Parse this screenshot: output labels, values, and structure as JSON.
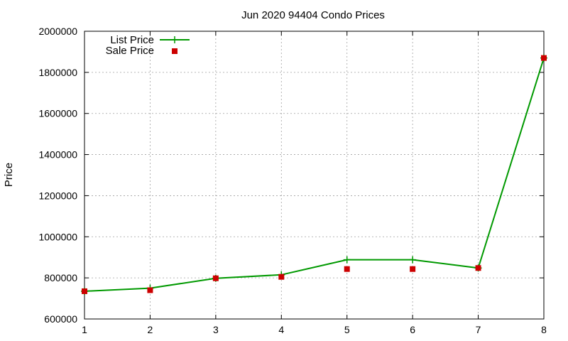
{
  "chart_data": {
    "type": "line",
    "title": "Jun 2020 94404 Condo Prices",
    "xlabel": "",
    "ylabel": "Price",
    "x": [
      1,
      2,
      3,
      4,
      5,
      6,
      7,
      8
    ],
    "xlim": [
      1,
      8
    ],
    "ylim": [
      600000,
      2000000
    ],
    "xticks": [
      1,
      2,
      3,
      4,
      5,
      6,
      7,
      8
    ],
    "yticks": [
      600000,
      800000,
      1000000,
      1200000,
      1400000,
      1600000,
      1800000,
      2000000
    ],
    "grid": true,
    "legend_position": "top-left",
    "series": [
      {
        "name": "List Price",
        "style": "line+cross",
        "color": "#009900",
        "values": [
          735000,
          750000,
          798000,
          815000,
          888000,
          888000,
          848000,
          1870000
        ]
      },
      {
        "name": "Sale Price",
        "style": "square-points",
        "color": "#cc0000",
        "values": [
          735000,
          740000,
          798000,
          805000,
          843000,
          843000,
          848000,
          1870000
        ]
      }
    ]
  }
}
